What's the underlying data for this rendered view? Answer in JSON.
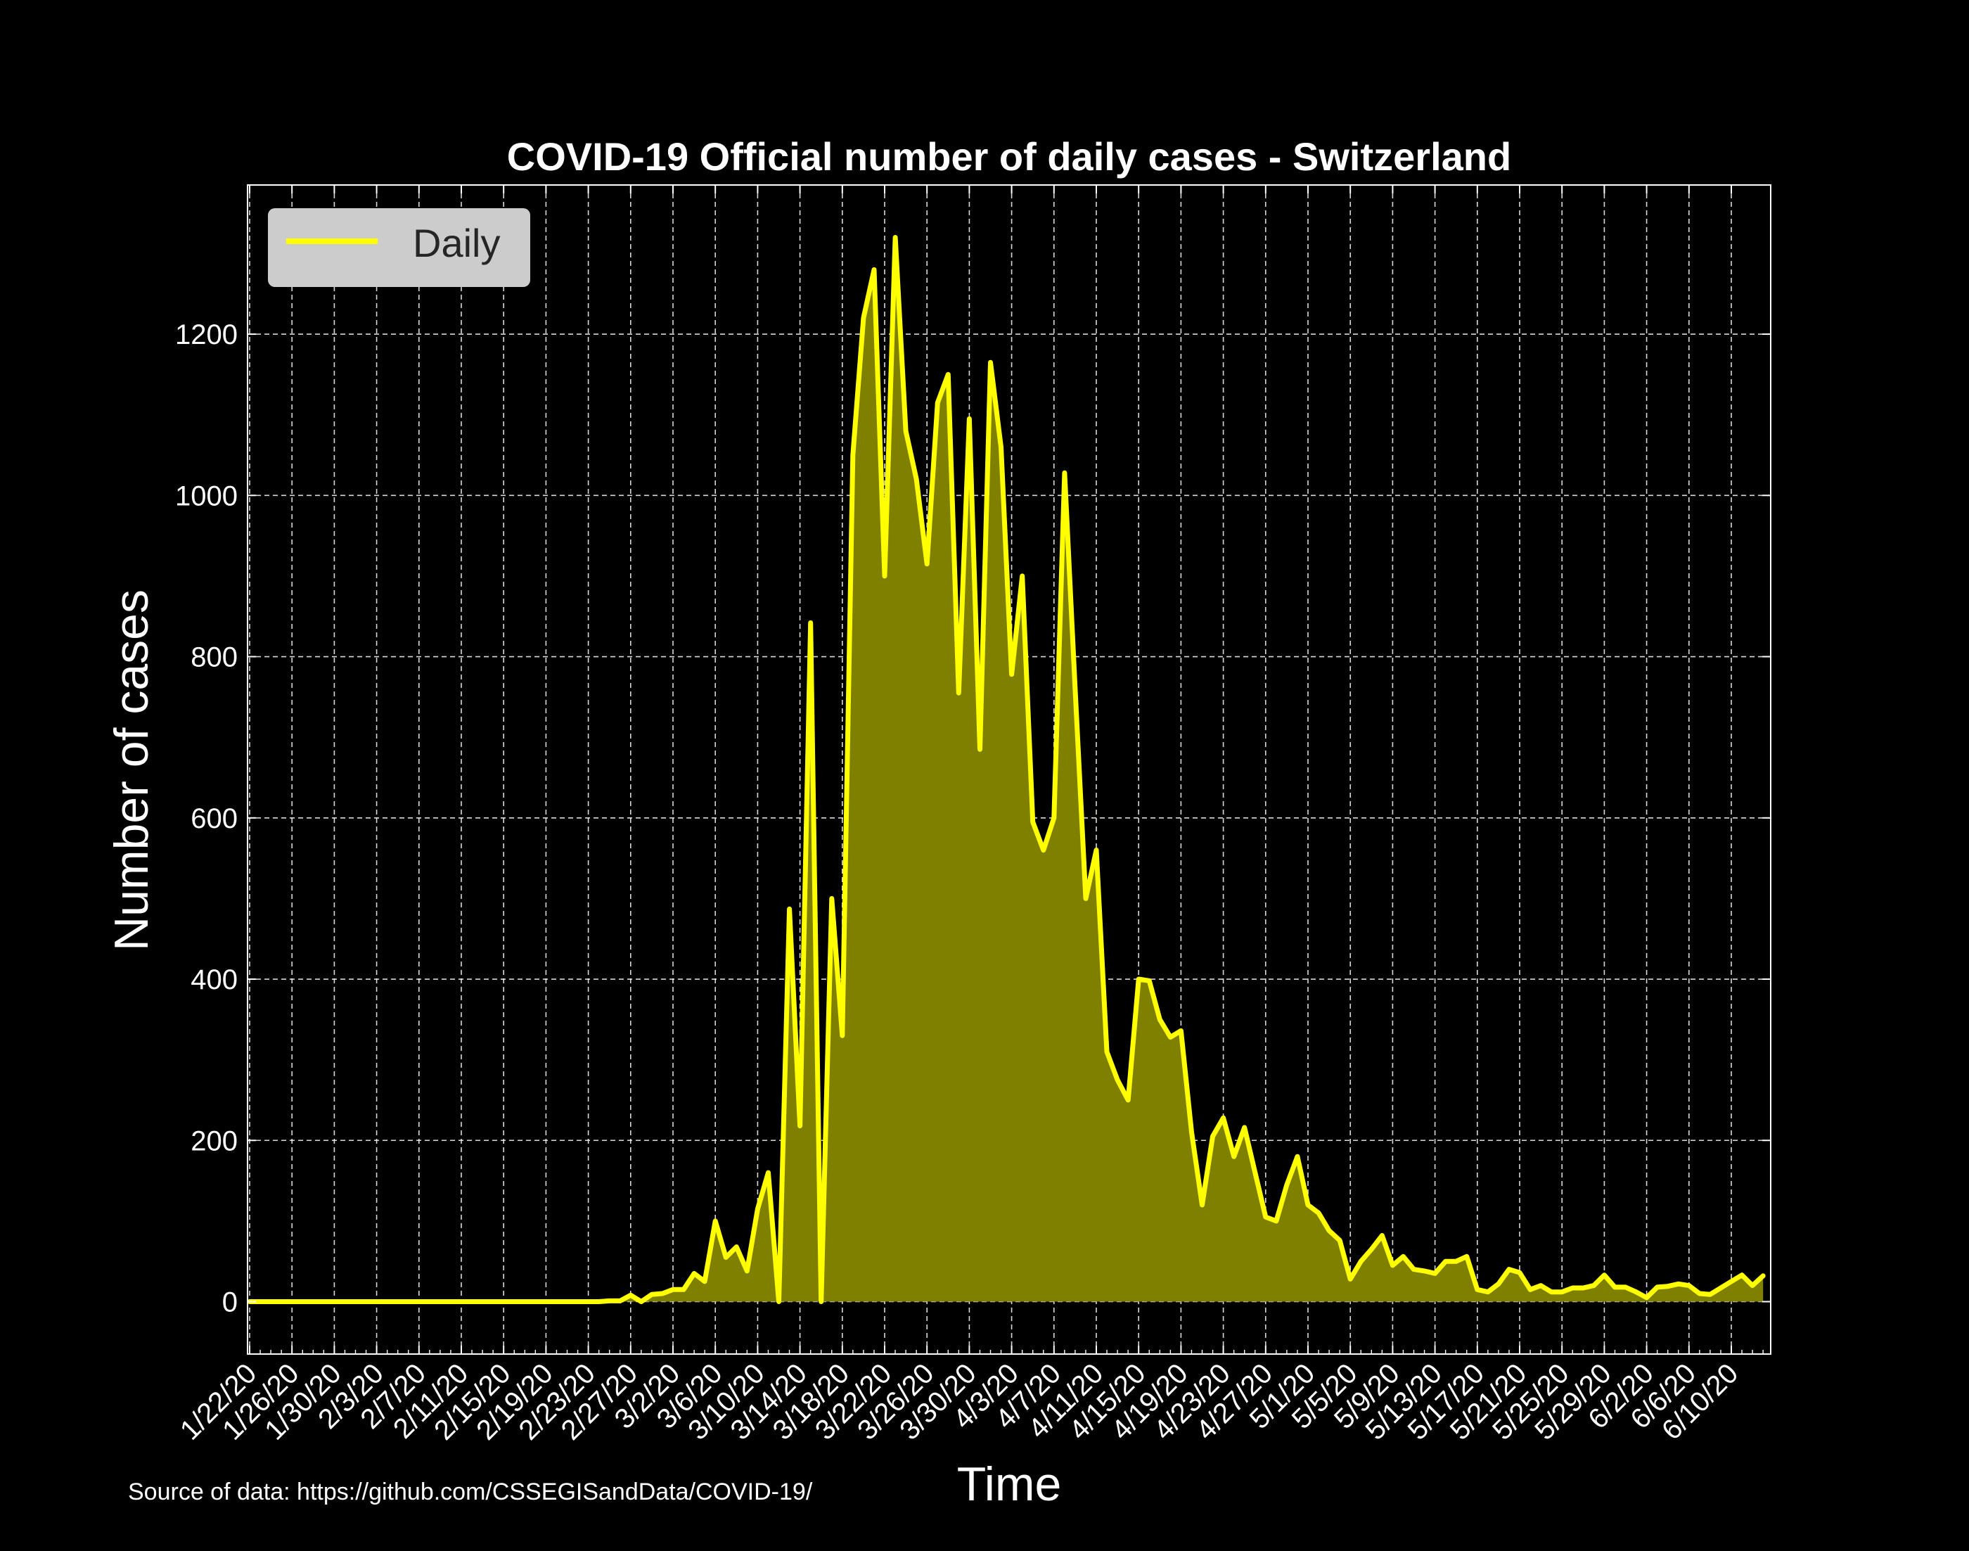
{
  "chart_data": {
    "type": "area",
    "title": "COVID-19 Official number of daily cases - Switzerland",
    "xlabel": "Time",
    "ylabel": "Number of cases",
    "source_text": "Source of data: https://github.com/CSSEGISandData/COVID-19/",
    "legend": {
      "placement": "top-left",
      "entries": [
        "Daily"
      ]
    },
    "grid": true,
    "ylim": [
      -65,
      1385
    ],
    "yticks": [
      0,
      200,
      400,
      600,
      800,
      1000,
      1200
    ],
    "x_tick_labels": [
      "1/22/20",
      "1/26/20",
      "1/30/20",
      "2/3/20",
      "2/7/20",
      "2/11/20",
      "2/15/20",
      "2/19/20",
      "2/23/20",
      "2/27/20",
      "3/2/20",
      "3/6/20",
      "3/10/20",
      "3/14/20",
      "3/18/20",
      "3/22/20",
      "3/26/20",
      "3/30/20",
      "4/3/20",
      "4/7/20",
      "4/11/20",
      "4/15/20",
      "4/19/20",
      "4/23/20",
      "4/27/20",
      "5/1/20",
      "5/5/20",
      "5/9/20",
      "5/13/20",
      "5/17/20",
      "5/21/20",
      "5/25/20",
      "5/29/20",
      "6/2/20",
      "6/6/20",
      "6/10/20"
    ],
    "x_start": "1/22/20",
    "x_end": "6/12/20",
    "series": [
      {
        "name": "Daily",
        "color": "#ffff00",
        "fill": "#808000",
        "values": [
          0,
          0,
          0,
          0,
          0,
          0,
          0,
          0,
          0,
          0,
          0,
          0,
          0,
          0,
          0,
          0,
          0,
          0,
          0,
          0,
          0,
          0,
          0,
          0,
          0,
          0,
          0,
          0,
          0,
          0,
          0,
          0,
          0,
          0,
          1,
          1,
          8,
          0,
          9,
          10,
          15,
          15,
          35,
          25,
          100,
          55,
          68,
          38,
          115,
          160,
          0,
          487,
          218,
          842,
          0,
          500,
          330,
          1050,
          1220,
          1280,
          900,
          1320,
          1080,
          1020,
          915,
          1115,
          1150,
          755,
          1095,
          685,
          1165,
          1060,
          778,
          900,
          595,
          560,
          600,
          1028,
          760,
          500,
          560,
          310,
          275,
          250,
          400,
          398,
          350,
          328,
          336,
          210,
          120,
          205,
          228,
          180,
          216,
          160,
          105,
          100,
          145,
          180,
          120,
          110,
          88,
          76,
          28,
          50,
          65,
          82,
          45,
          56,
          40,
          38,
          35,
          50,
          50,
          56,
          15,
          12,
          22,
          40,
          36,
          15,
          20,
          12,
          12,
          17,
          17,
          20,
          33,
          18,
          18,
          12,
          5,
          18,
          19,
          22,
          20,
          10,
          9,
          17,
          25,
          33,
          20,
          32
        ]
      }
    ]
  }
}
